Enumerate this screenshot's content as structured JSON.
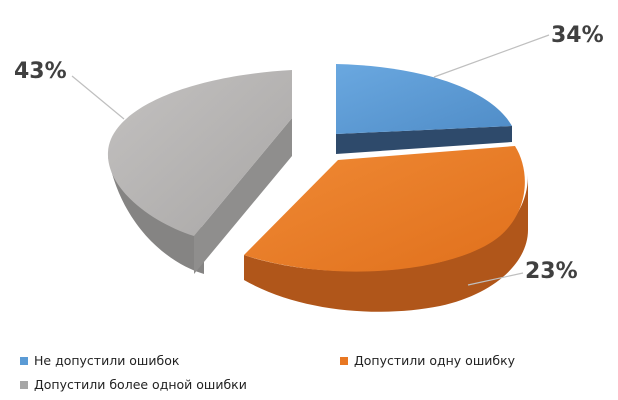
{
  "chart_data": {
    "type": "pie",
    "style": "3d-exploded",
    "title": "",
    "legend_position": "bottom",
    "slices": [
      {
        "name": "Не допустили ошибок",
        "value": 34,
        "label": "34%",
        "color": "#5b9bd5",
        "side_color": "#2e4a6b"
      },
      {
        "name": "Допустили одну ошибку",
        "value": 23,
        "label": "23%",
        "color": "#e87722",
        "side_color": "#b0561a"
      },
      {
        "name": "Допустили более одной ошибки",
        "value": 43,
        "label": "43%",
        "color": "#b5b3b2",
        "side_color": "#858483"
      }
    ]
  }
}
